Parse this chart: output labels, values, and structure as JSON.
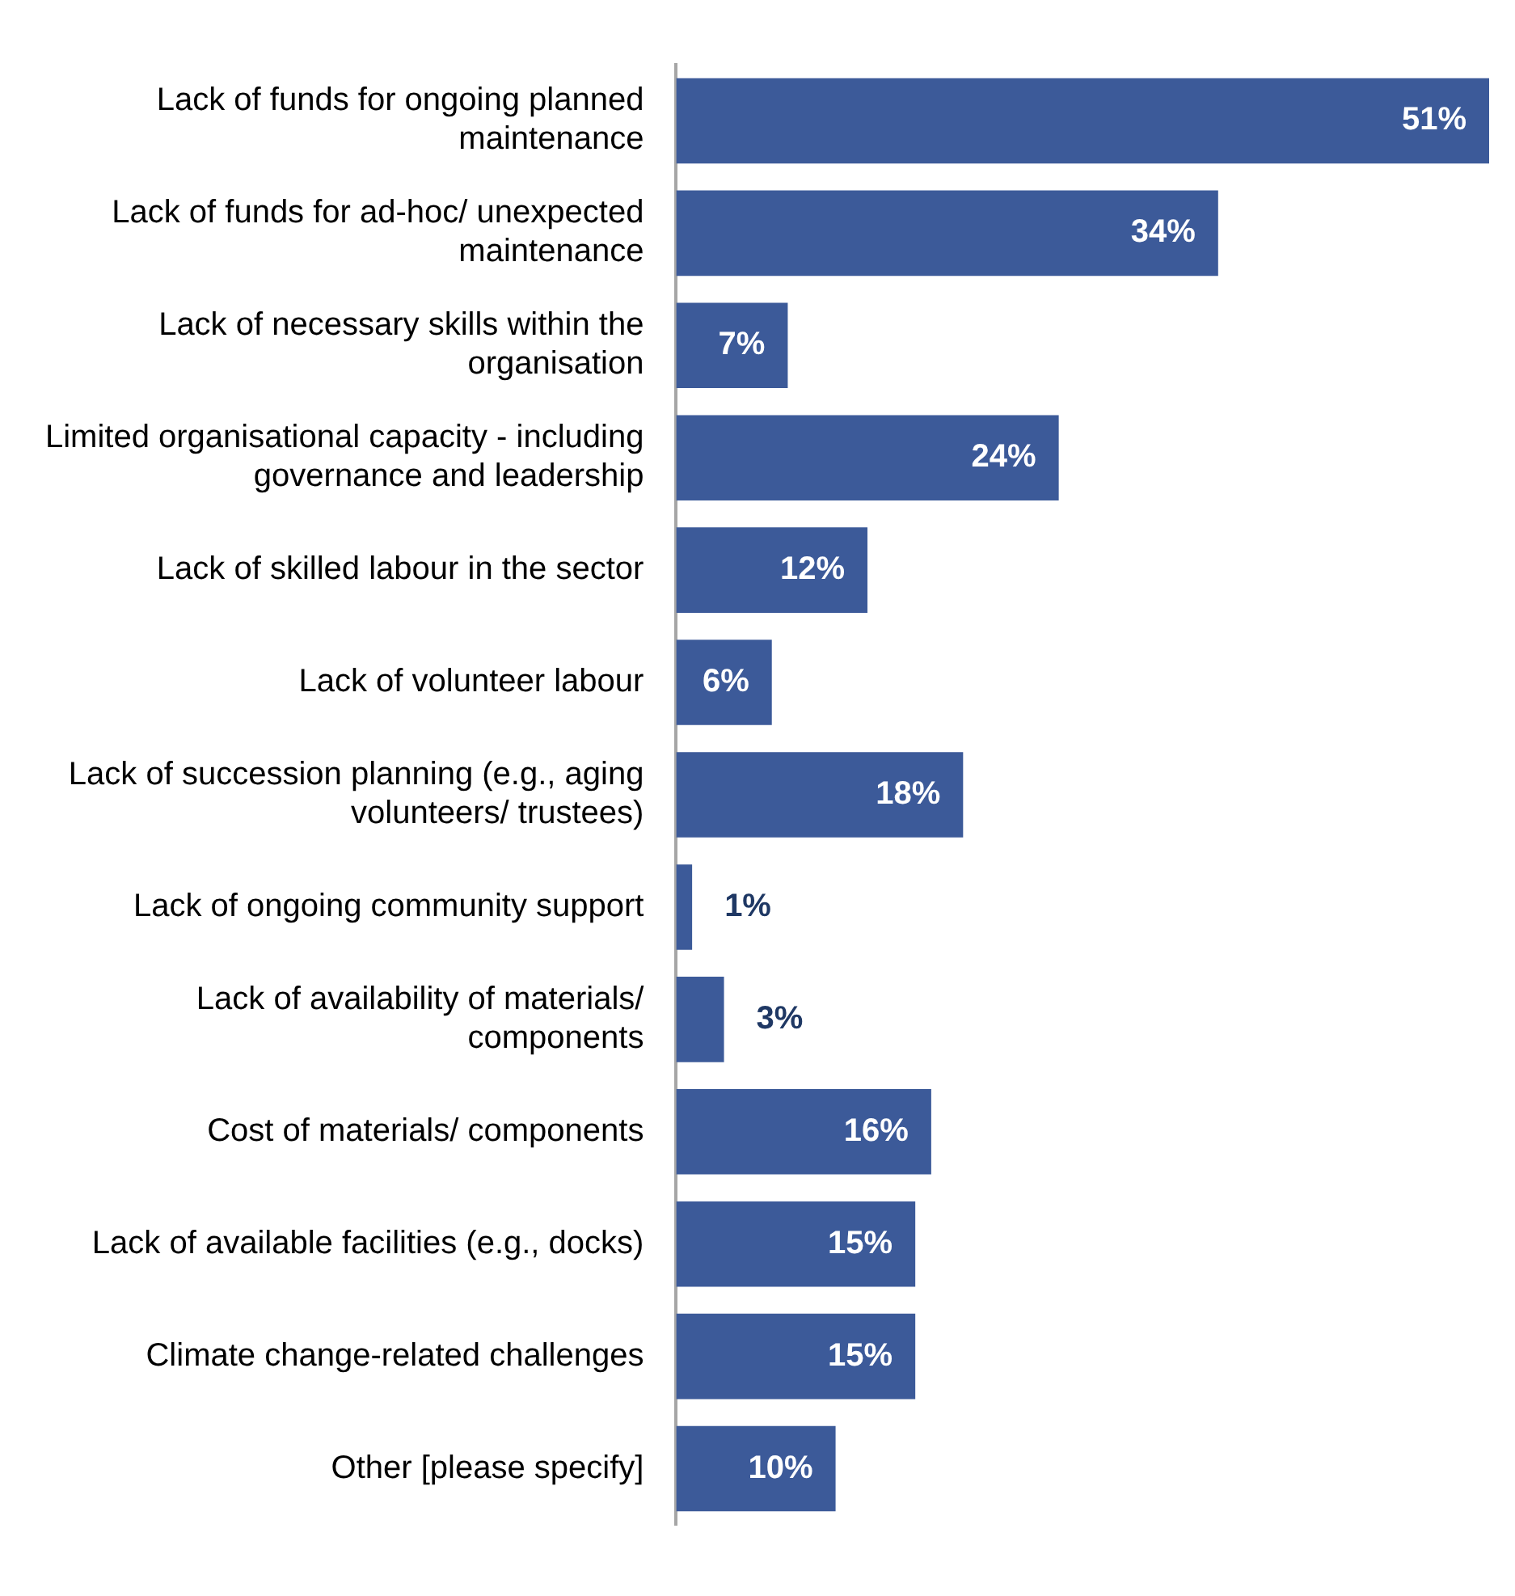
{
  "chart_data": {
    "type": "bar",
    "orientation": "horizontal",
    "categories": [
      "Lack of funds for ongoing planned maintenance",
      "Lack of funds for ad-hoc/ unexpected maintenance",
      "Lack of necessary skills within the organisation",
      "Limited organisational capacity - including governance and leadership",
      "Lack of skilled labour in the sector",
      "Lack of volunteer labour",
      "Lack of succession planning (e.g., aging volunteers/ trustees)",
      "Lack of ongoing community support",
      "Lack of availability of materials/ components",
      "Cost of materials/ components",
      "Lack of available facilities (e.g., docks)",
      "Climate change-related challenges",
      "Other [please specify]"
    ],
    "values": [
      51,
      34,
      7,
      24,
      12,
      6,
      18,
      1,
      3,
      16,
      15,
      15,
      10
    ],
    "value_labels": [
      "51%",
      "34%",
      "7%",
      "24%",
      "12%",
      "6%",
      "18%",
      "1%",
      "3%",
      "16%",
      "15%",
      "15%",
      "10%"
    ],
    "color": "#3c5a99",
    "grid": false,
    "legend": false
  }
}
